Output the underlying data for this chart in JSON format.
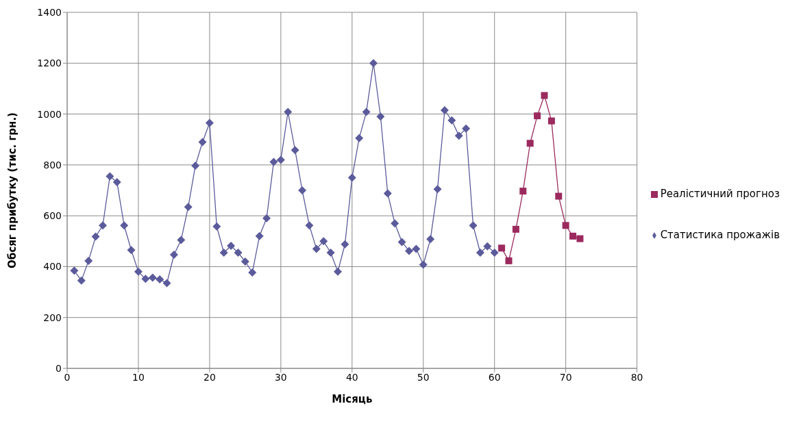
{
  "chart_data": {
    "type": "line",
    "xlabel": "Місяць",
    "ylabel": "Обсяг прибутку (тис. грн.)",
    "xlim": [
      0,
      80
    ],
    "xticks": [
      0,
      10,
      20,
      30,
      40,
      50,
      60,
      70,
      80
    ],
    "ylim": [
      0,
      1400
    ],
    "yticks": [
      0,
      200,
      400,
      600,
      800,
      1000,
      1200,
      1400
    ],
    "grid": true,
    "legend": "right",
    "line_style": "solid",
    "series": [
      {
        "name": "Статистика прожажів",
        "color": "#5b5b9b",
        "marker": "diamond",
        "x": [
          1,
          2,
          3,
          4,
          5,
          6,
          7,
          8,
          9,
          10,
          11,
          12,
          13,
          14,
          15,
          16,
          17,
          18,
          19,
          20,
          21,
          22,
          23,
          24,
          25,
          26,
          27,
          28,
          29,
          30,
          31,
          32,
          33,
          34,
          35,
          36,
          37,
          38,
          39,
          40,
          41,
          42,
          43,
          44,
          45,
          46,
          47,
          48,
          49,
          50,
          51,
          52,
          53,
          54,
          55,
          56,
          57,
          58,
          59,
          60
        ],
        "values": [
          384,
          345,
          423,
          518,
          562,
          755,
          732,
          562,
          465,
          380,
          352,
          357,
          350,
          335,
          447,
          505,
          635,
          797,
          890,
          965,
          558,
          455,
          482,
          455,
          420,
          377,
          520,
          590,
          812,
          820,
          1008,
          858,
          700,
          562,
          470,
          500,
          455,
          380,
          488,
          750,
          905,
          1008,
          1200,
          990,
          688,
          570,
          497,
          462,
          470,
          408,
          508,
          705,
          1015,
          975,
          915,
          943,
          562,
          455,
          480,
          455
        ]
      },
      {
        "name": "Реалістичний прогноз",
        "color": "#9b2a5e",
        "marker": "square",
        "x": [
          61,
          62,
          63,
          64,
          65,
          66,
          67,
          68,
          69,
          70,
          71,
          72
        ],
        "values": [
          473,
          423,
          547,
          697,
          885,
          993,
          1073,
          973,
          677,
          562,
          520,
          510
        ]
      }
    ]
  }
}
